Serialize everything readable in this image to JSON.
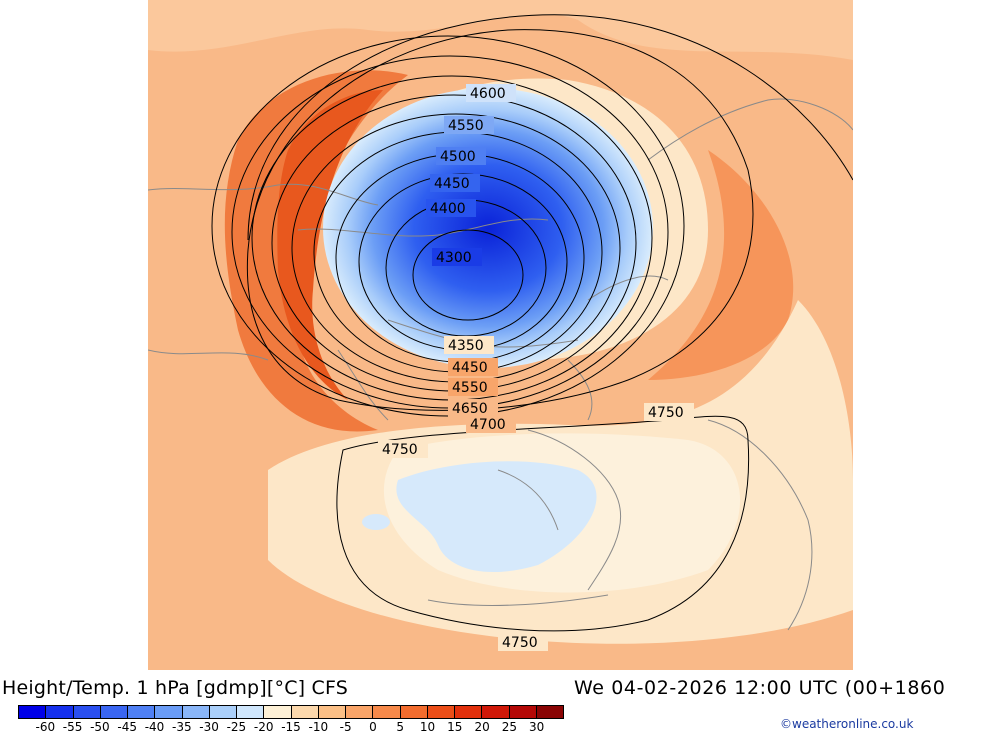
{
  "title_left": "Height/Temp. 1 hPa [gdmp][°C] CFS",
  "title_right": "We 04-02-2026 12:00 UTC (00+1860",
  "credit": "©weatheronline.co.uk",
  "contour_labels": [
    {
      "id": "c1",
      "text": "4600"
    },
    {
      "id": "c2",
      "text": "4550"
    },
    {
      "id": "c3",
      "text": "4500"
    },
    {
      "id": "c4",
      "text": "4450"
    },
    {
      "id": "c5",
      "text": "4400"
    },
    {
      "id": "c6",
      "text": "4300"
    },
    {
      "id": "c7",
      "text": "4350"
    },
    {
      "id": "c8",
      "text": "4450"
    },
    {
      "id": "c9",
      "text": "4550"
    },
    {
      "id": "c10",
      "text": "4650"
    },
    {
      "id": "c11",
      "text": "4700"
    },
    {
      "id": "c12",
      "text": "4750"
    },
    {
      "id": "c13",
      "text": "4750"
    },
    {
      "id": "c14",
      "text": "4750"
    }
  ],
  "legend": {
    "colors": [
      "#0000e8",
      "#1530ee",
      "#2a4ff0",
      "#3a66f2",
      "#4f80f4",
      "#6a9cf6",
      "#8ab6f8",
      "#aacffa",
      "#cfe6fc",
      "#fdf0d6",
      "#fcd8ac",
      "#fbbf86",
      "#f9a468",
      "#f6894a",
      "#f26c2e",
      "#ec4e18",
      "#e2300c",
      "#d01808",
      "#b40806",
      "#8a0404"
    ],
    "ticks": [
      "-60",
      "-55",
      "-50",
      "-45",
      "-40",
      "-35",
      "-30",
      "-25",
      "-20",
      "-15",
      "-10",
      "-5",
      "0",
      "5",
      "10",
      "15",
      "20",
      "25",
      "30"
    ]
  }
}
